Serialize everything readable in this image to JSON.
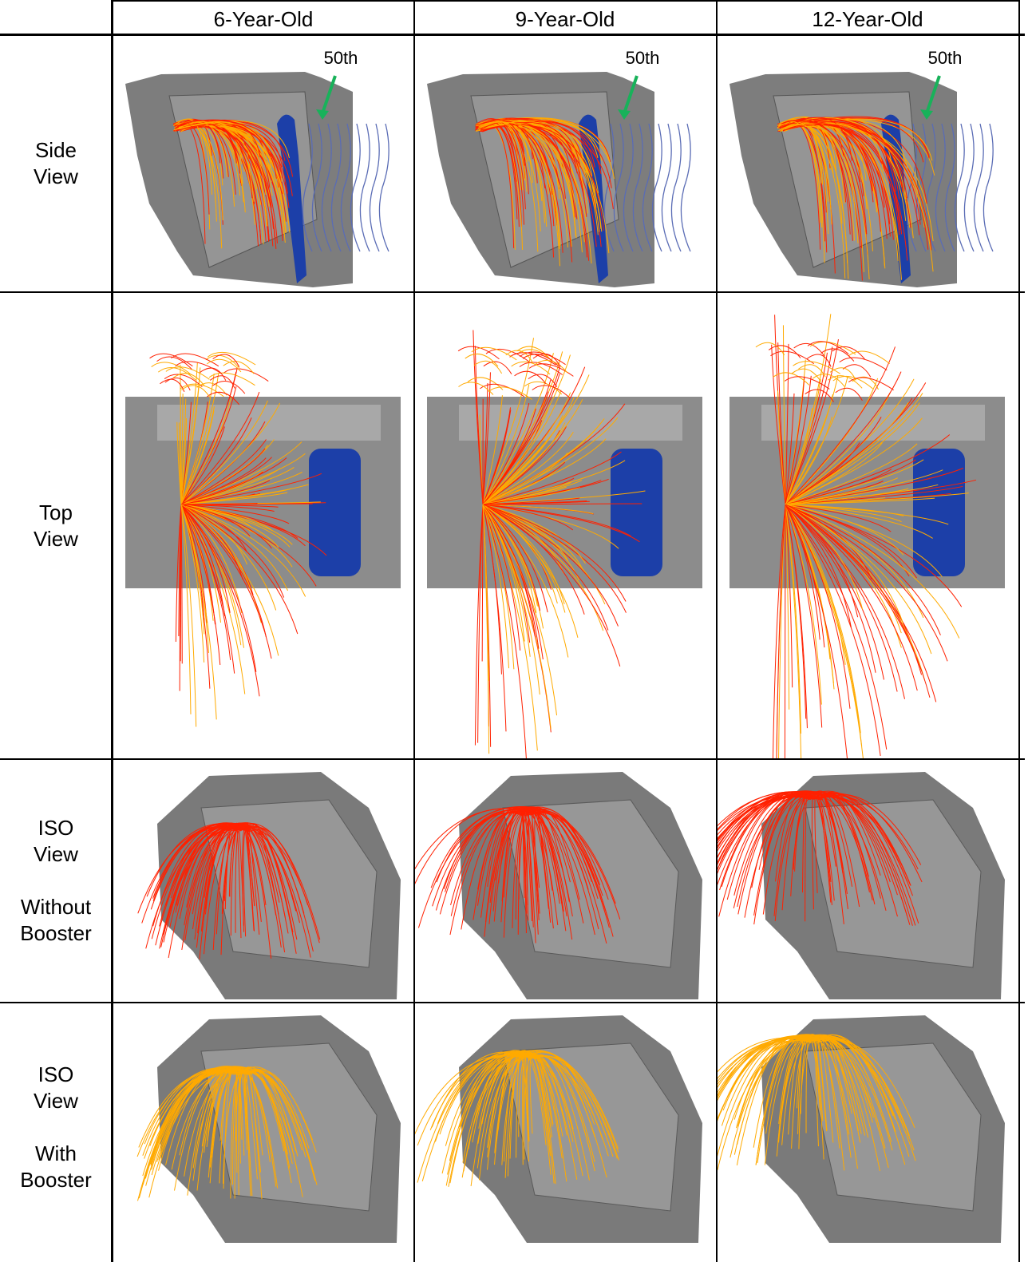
{
  "header": {
    "columns": [
      "6-Year-Old",
      "9-Year-Old",
      "12-Year-Old"
    ]
  },
  "rows": [
    {
      "label": [
        "Side",
        "View"
      ],
      "annotations": [
        "50th",
        "50th",
        "50th"
      ]
    },
    {
      "label": [
        "Top",
        "View"
      ]
    },
    {
      "label": [
        "ISO",
        "View"
      ],
      "condition": [
        "Without",
        "Booster"
      ]
    },
    {
      "label": [
        "ISO",
        "View"
      ],
      "condition": [
        "With",
        "Booster"
      ]
    }
  ]
}
